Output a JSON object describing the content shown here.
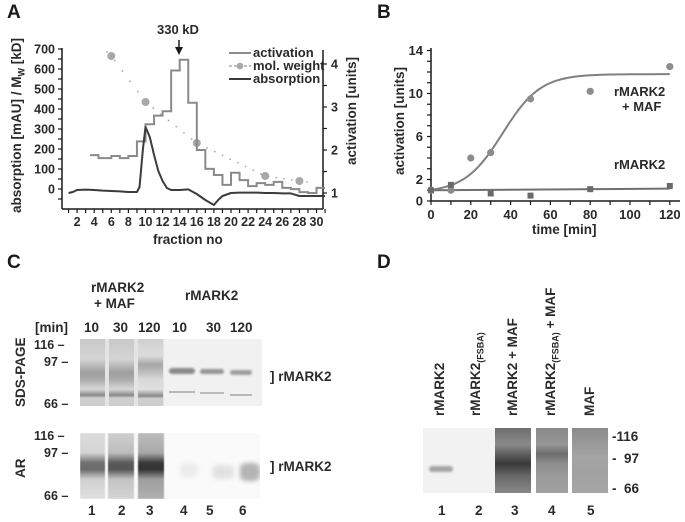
{
  "panels": {
    "A": {
      "letter": "A"
    },
    "B": {
      "letter": "B"
    },
    "C": {
      "letter": "C"
    },
    "D": {
      "letter": "D"
    }
  },
  "colors": {
    "activation": "#8a8a8a",
    "mol_weight": "#a8a8a8",
    "absorption": "#3c3c3c",
    "axis": "#1a1a1a"
  },
  "chart_data": [
    {
      "panel": "A",
      "type": "line",
      "title": "",
      "annotation": "330 kD",
      "xlabel": "fraction no",
      "ylabel": "absorption [mAU] / M_W [kD]",
      "ylabel_right": "activation [units]",
      "xlim": [
        0,
        31
      ],
      "ylim": [
        -100,
        700
      ],
      "ylim_right": [
        0.8,
        4.3
      ],
      "x_ticks": [
        2,
        4,
        6,
        8,
        10,
        12,
        14,
        16,
        18,
        20,
        22,
        24,
        26,
        28,
        30
      ],
      "y_ticks": [
        0,
        100,
        200,
        300,
        400,
        500,
        600,
        700
      ],
      "y_ticks_right": [
        1,
        2,
        3,
        4
      ],
      "legend": [
        "activation",
        "mol. weight",
        "absorption"
      ],
      "legend_position": "upper right",
      "series": [
        {
          "name": "activation",
          "axis": "right",
          "style": "step",
          "x_edges": [
            3.5,
            4.5,
            6,
            7,
            8,
            9,
            10,
            11,
            12,
            13,
            14,
            15,
            16,
            17,
            18,
            19,
            20,
            21,
            22,
            23,
            24,
            25,
            26,
            27,
            28,
            29,
            30,
            31
          ],
          "values": [
            1.88,
            1.81,
            1.86,
            1.81,
            1.86,
            2.2,
            2.6,
            2.8,
            2.9,
            3.85,
            4.1,
            3.1,
            2.0,
            1.56,
            1.42,
            1.19,
            1.47,
            1.3,
            1.16,
            1.23,
            1.19,
            1.26,
            1.12,
            1.09,
            1.02,
            1.0,
            1.12
          ]
        },
        {
          "name": "mol. weight",
          "axis": "left",
          "style": "dotted-markers",
          "x": [
            6,
            10,
            16,
            24,
            28
          ],
          "values": [
            665,
            435,
            230,
            65,
            40
          ]
        },
        {
          "name": "absorption",
          "axis": "left",
          "style": "line",
          "x": [
            1,
            1.5,
            2,
            3,
            4,
            5,
            6,
            7,
            8,
            9,
            9.3,
            9.7,
            10,
            10.5,
            11,
            11.5,
            12,
            12.5,
            13,
            14,
            15,
            16,
            17,
            18,
            18.5,
            19,
            20,
            21,
            22,
            23,
            24,
            25,
            26,
            27,
            28,
            29,
            30,
            31
          ],
          "values": [
            -20,
            -15,
            -5,
            -3,
            -5,
            -8,
            -10,
            -12,
            -15,
            -15,
            10,
            200,
            310,
            260,
            170,
            90,
            40,
            5,
            -5,
            -5,
            -2,
            -25,
            -55,
            -80,
            -55,
            -35,
            -20,
            -18,
            -18,
            -18,
            -20,
            -20,
            -22,
            -22,
            -35,
            -35,
            -35,
            -35
          ]
        }
      ]
    },
    {
      "panel": "B",
      "type": "scatter",
      "title": "",
      "xlabel": "time [min]",
      "ylabel": "activation [units]",
      "xlim": [
        0,
        125
      ],
      "ylim": [
        0,
        14
      ],
      "x_ticks": [
        0,
        20,
        40,
        60,
        80,
        100,
        120
      ],
      "y_ticks": [
        0,
        2,
        6,
        10,
        14
      ],
      "series": [
        {
          "name": "rMARK2 + MAF",
          "marker": "circle",
          "x": [
            0,
            10,
            20,
            30,
            50,
            80,
            120
          ],
          "values": [
            1.0,
            1.0,
            4.0,
            4.5,
            9.5,
            10.2,
            12.5
          ],
          "fit": "sigmoid",
          "fit_plateau": 11.8
        },
        {
          "name": "rMARK2",
          "marker": "square",
          "x": [
            0,
            10,
            30,
            50,
            80,
            120
          ],
          "values": [
            1.0,
            1.5,
            0.7,
            0.5,
            1.1,
            1.4
          ],
          "fit": "flat",
          "fit_level": 1.0
        }
      ]
    }
  ],
  "panel_a": {
    "annotation": "330 kD",
    "xlabel": "fraction no",
    "ylabel": "absorption [mAU] / M",
    "ylabel_sub": "W",
    "ylabel_tail": " [kD]",
    "ylabel_right": "activation [units]",
    "legend": {
      "activation": "activation",
      "mol_weight": "mol. weight",
      "absorption": "absorption"
    }
  },
  "panel_b": {
    "xlabel": "time [min]",
    "ylabel": "activation [units]",
    "series_label_1a": "rMARK2",
    "series_label_1b": "+ MAF",
    "series_label_2": "rMARK2"
  },
  "panel_c": {
    "group1_line1": "rMARK2",
    "group1_line2": "+ MAF",
    "group2": "rMARK2",
    "min_label": "[min]",
    "times": [
      "10",
      "30",
      "120",
      "10",
      "30",
      "120"
    ],
    "row1_label": "SDS-PAGE",
    "row2_label": "AR",
    "markers": [
      "116 –",
      "97 –",
      "66 –"
    ],
    "band_label": "] rMARK2",
    "lanes": [
      "1",
      "2",
      "3",
      "4",
      "5",
      "6"
    ]
  },
  "panel_d": {
    "lane_labels": [
      {
        "main": "rMARK2",
        "sub": "",
        "tail": ""
      },
      {
        "main": "rMARK2",
        "sub": "(FSBA)",
        "tail": ""
      },
      {
        "main": "rMARK2 + MAF",
        "sub": "",
        "tail": ""
      },
      {
        "main": "rMARK2",
        "sub": "(FSBA)",
        "tail": " + MAF"
      },
      {
        "main": "MAF",
        "sub": "",
        "tail": ""
      }
    ],
    "markers": [
      "-116",
      "-  97",
      "-  66"
    ],
    "lanes": [
      "1",
      "2",
      "3",
      "4",
      "5"
    ]
  }
}
